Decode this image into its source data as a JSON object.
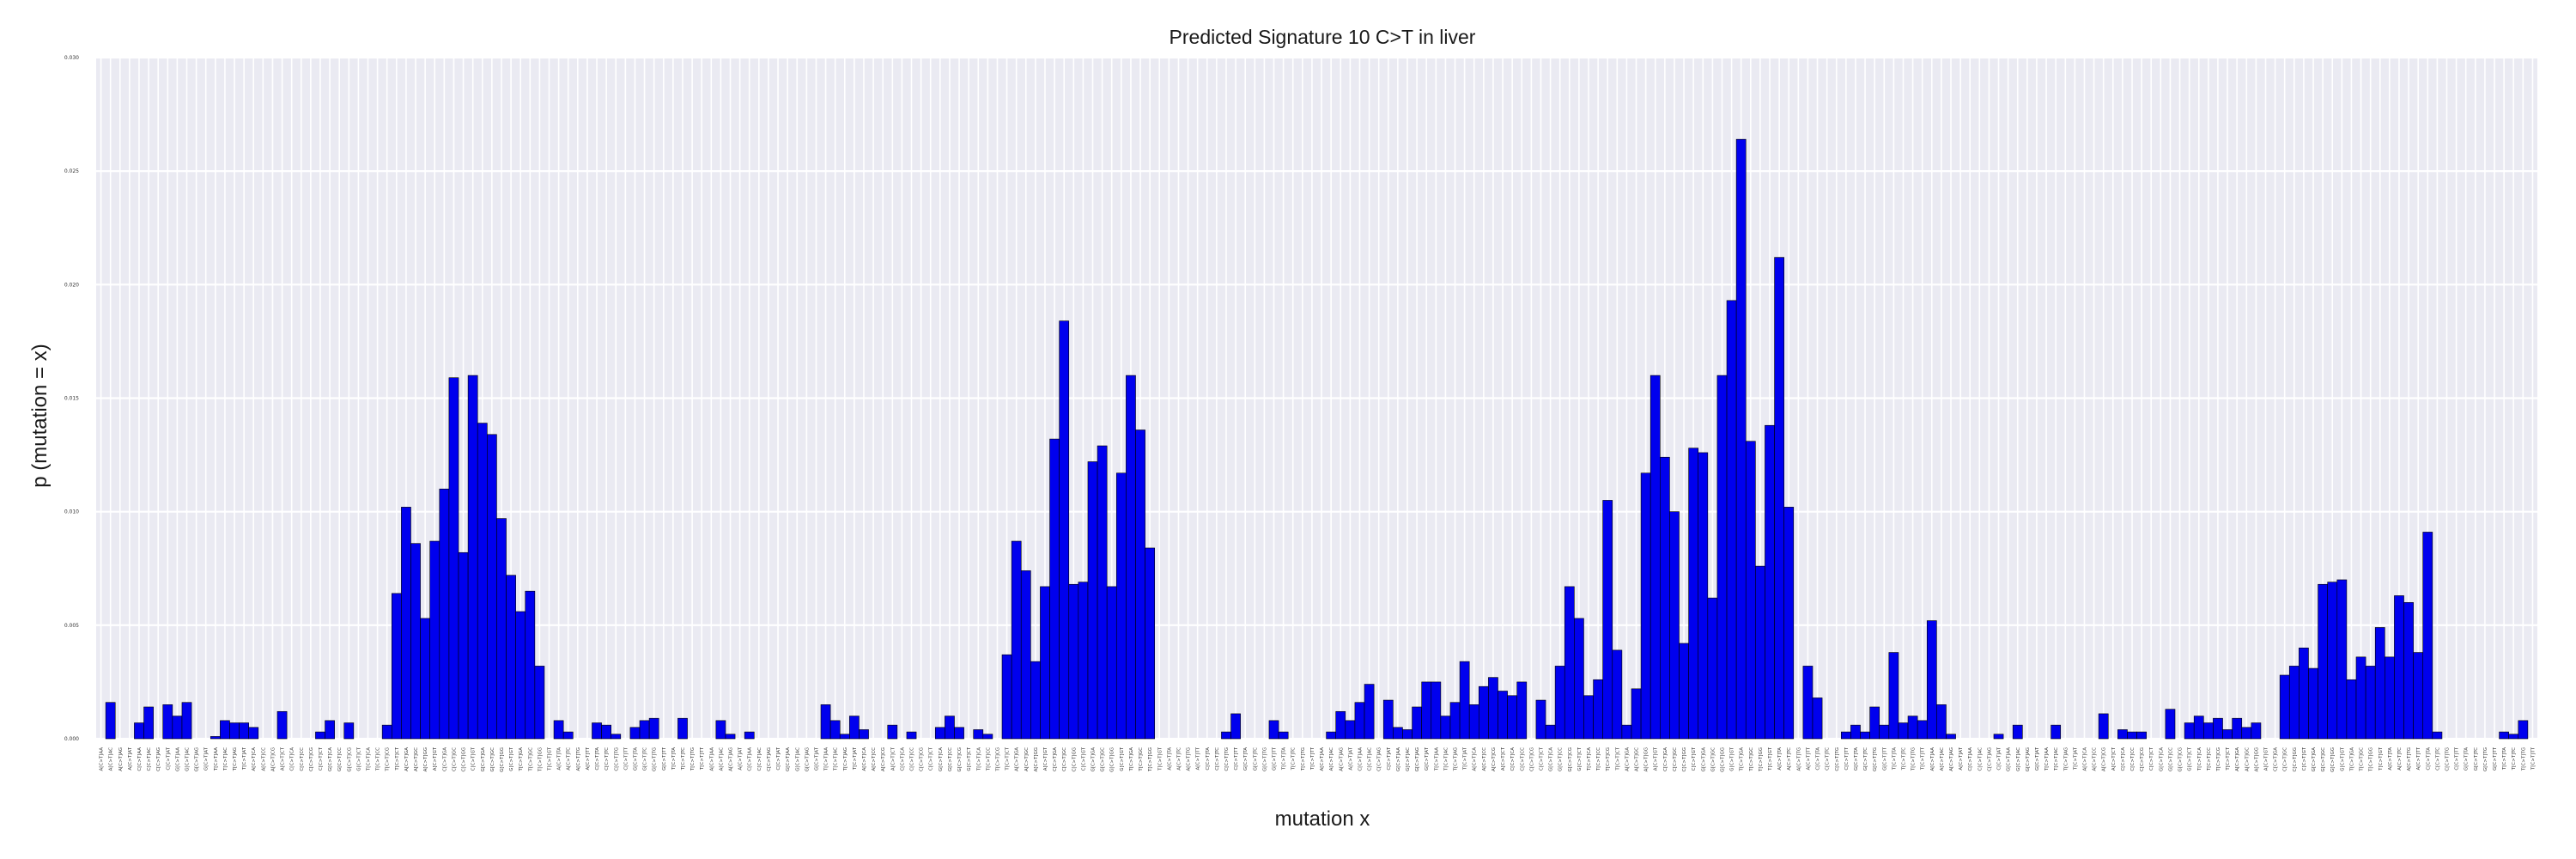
{
  "chart_data": {
    "type": "bar",
    "title": "Predicted Signature 10 C>T in liver",
    "xlabel": "mutation x",
    "ylabel": "p (mutation = x)",
    "ylim": [
      0,
      0.03
    ],
    "yticks": [
      "0.000",
      "0.005",
      "0.010",
      "0.015",
      "0.020",
      "0.025",
      "0.030"
    ],
    "grid": true,
    "colors": {
      "bar": "#0000ee",
      "bar_edge": "#000000",
      "plot_bg": "#eaeaf2",
      "grid": "#ffffff"
    },
    "categories": [
      "A[C>T]AA",
      "A[C>T]AC",
      "A[C>T]AG",
      "A[C>T]AT",
      "C[C>T]AA",
      "C[C>T]AC",
      "C[C>T]AG",
      "C[C>T]AT",
      "G[C>T]AA",
      "G[C>T]AC",
      "G[C>T]AG",
      "G[C>T]AT",
      "T[C>T]AA",
      "T[C>T]AC",
      "T[C>T]AG",
      "T[C>T]AT",
      "A[C>T]CA",
      "A[C>T]CC",
      "A[C>T]CG",
      "A[C>T]CT",
      "C[C>T]CA",
      "C[C>T]CC",
      "C[C>T]CG",
      "C[C>T]CT",
      "G[C>T]CA",
      "G[C>T]CC",
      "G[C>T]CG",
      "G[C>T]CT",
      "T[C>T]CA",
      "T[C>T]CC",
      "T[C>T]CG",
      "T[C>T]CT",
      "A[C>T]GA",
      "A[C>T]GC",
      "A[C>T]GG",
      "A[C>T]GT",
      "C[C>T]GA",
      "C[C>T]GC",
      "C[C>T]GG",
      "C[C>T]GT",
      "G[C>T]GA",
      "G[C>T]GC",
      "G[C>T]GG",
      "G[C>T]GT",
      "T[C>T]GA",
      "T[C>T]GC",
      "T[C>T]GG",
      "T[C>T]GT",
      "A[C>T]TA",
      "A[C>T]TC",
      "A[C>T]TG",
      "A[C>T]TT",
      "C[C>T]TA",
      "C[C>T]TC",
      "C[C>T]TG",
      "C[C>T]TT",
      "G[C>T]TA",
      "G[C>T]TC",
      "G[C>T]TG",
      "G[C>T]TT",
      "T[C>T]TA",
      "T[C>T]TC",
      "T[C>T]TG",
      "T[C>T]TT",
      "A[C>T]AA",
      "A[C>T]AC",
      "A[C>T]AG",
      "A[C>T]AT",
      "C[C>T]AA",
      "C[C>T]AC",
      "C[C>T]AG",
      "C[C>T]AT",
      "G[C>T]AA",
      "G[C>T]AC",
      "G[C>T]AG",
      "G[C>T]AT",
      "T[C>T]AA",
      "T[C>T]AC",
      "T[C>T]AG",
      "T[C>T]AT",
      "A[C>T]CA",
      "A[C>T]CC",
      "A[C>T]CG",
      "A[C>T]CT",
      "C[C>T]CA",
      "C[C>T]CC",
      "C[C>T]CG",
      "C[C>T]CT",
      "G[C>T]CA",
      "G[C>T]CC",
      "G[C>T]CG",
      "G[C>T]CT",
      "T[C>T]CA",
      "T[C>T]CC",
      "T[C>T]CG",
      "T[C>T]CT",
      "A[C>T]GA",
      "A[C>T]GC",
      "A[C>T]GG",
      "A[C>T]GT",
      "C[C>T]GA",
      "C[C>T]GC",
      "C[C>T]GG",
      "C[C>T]GT",
      "G[C>T]GA",
      "G[C>T]GC",
      "G[C>T]GG",
      "G[C>T]GT",
      "T[C>T]GA",
      "T[C>T]GC",
      "T[C>T]GG",
      "T[C>T]GT",
      "A[C>T]TA",
      "A[C>T]TC",
      "A[C>T]TG",
      "A[C>T]TT",
      "C[C>T]TA",
      "C[C>T]TC",
      "C[C>T]TG",
      "C[C>T]TT",
      "G[C>T]TA",
      "G[C>T]TC",
      "G[C>T]TG",
      "G[C>T]TT",
      "T[C>T]TA",
      "T[C>T]TC",
      "T[C>T]TG",
      "T[C>T]TT",
      "A[C>T]AA",
      "A[C>T]AC",
      "A[C>T]AG",
      "A[C>T]AT",
      "C[C>T]AA",
      "C[C>T]AC",
      "C[C>T]AG",
      "C[C>T]AT",
      "G[C>T]AA",
      "G[C>T]AC",
      "G[C>T]AG",
      "G[C>T]AT",
      "T[C>T]AA",
      "T[C>T]AC",
      "T[C>T]AG",
      "T[C>T]AT",
      "A[C>T]CA",
      "A[C>T]CC",
      "A[C>T]CG",
      "A[C>T]CT",
      "C[C>T]CA",
      "C[C>T]CC",
      "C[C>T]CG",
      "C[C>T]CT",
      "G[C>T]CA",
      "G[C>T]CC",
      "G[C>T]CG",
      "G[C>T]CT",
      "T[C>T]CA",
      "T[C>T]CC",
      "T[C>T]CG",
      "T[C>T]CT",
      "A[C>T]GA",
      "A[C>T]GC",
      "A[C>T]GG",
      "A[C>T]GT",
      "C[C>T]GA",
      "C[C>T]GC",
      "C[C>T]GG",
      "C[C>T]GT",
      "G[C>T]GA",
      "G[C>T]GC",
      "G[C>T]GG",
      "G[C>T]GT",
      "T[C>T]GA",
      "T[C>T]GC",
      "T[C>T]GG",
      "T[C>T]GT",
      "A[C>T]TA",
      "A[C>T]TC",
      "A[C>T]TG",
      "A[C>T]TT",
      "C[C>T]TA",
      "C[C>T]TC",
      "C[C>T]TG",
      "C[C>T]TT",
      "G[C>T]TA",
      "G[C>T]TC",
      "G[C>T]TG",
      "G[C>T]TT",
      "T[C>T]TA",
      "T[C>T]TC",
      "T[C>T]TG",
      "T[C>T]TT",
      "A[C>T]AA",
      "A[C>T]AC",
      "A[C>T]AG",
      "A[C>T]AT",
      "C[C>T]AA",
      "C[C>T]AC",
      "C[C>T]AG",
      "C[C>T]AT",
      "G[C>T]AA",
      "G[C>T]AC",
      "G[C>T]AG",
      "G[C>T]AT",
      "T[C>T]AA",
      "T[C>T]AC",
      "T[C>T]AG",
      "T[C>T]AT",
      "A[C>T]CA",
      "A[C>T]CC",
      "A[C>T]CG",
      "A[C>T]CT",
      "C[C>T]CA",
      "C[C>T]CC",
      "C[C>T]CG",
      "C[C>T]CT",
      "G[C>T]CA",
      "G[C>T]CC",
      "G[C>T]CG",
      "G[C>T]CT",
      "T[C>T]CA",
      "T[C>T]CC",
      "T[C>T]CG",
      "T[C>T]CT",
      "A[C>T]GA",
      "A[C>T]GC",
      "A[C>T]GG",
      "A[C>T]GT",
      "C[C>T]GA",
      "C[C>T]GC",
      "C[C>T]GG",
      "C[C>T]GT",
      "G[C>T]GA",
      "G[C>T]GC",
      "G[C>T]GG",
      "G[C>T]GT",
      "T[C>T]GA",
      "T[C>T]GC",
      "T[C>T]GG",
      "T[C>T]GT",
      "A[C>T]TA",
      "A[C>T]TC",
      "A[C>T]TG",
      "A[C>T]TT",
      "C[C>T]TA",
      "C[C>T]TC",
      "C[C>T]TG",
      "C[C>T]TT",
      "G[C>T]TA",
      "G[C>T]TC",
      "G[C>T]TG",
      "G[C>T]TT",
      "T[C>T]TA",
      "T[C>T]TC",
      "T[C>T]TG",
      "T[C>T]TT"
    ],
    "values": [
      0.0,
      0.0016,
      0.0,
      0.0,
      0.0007,
      0.0014,
      0.0,
      0.0015,
      0.001,
      0.0016,
      0.0,
      0.0,
      0.0001,
      0.0008,
      0.0007,
      0.0007,
      0.0005,
      0.0,
      0.0,
      0.0012,
      0.0,
      0.0,
      0.0,
      0.0003,
      0.0008,
      0.0,
      0.0007,
      0.0,
      0.0,
      0.0,
      0.0006,
      0.0064,
      0.0102,
      0.0086,
      0.0053,
      0.0087,
      0.011,
      0.0159,
      0.0082,
      0.016,
      0.0139,
      0.0134,
      0.0097,
      0.0072,
      0.0056,
      0.0065,
      0.0032,
      0.0,
      0.0008,
      0.0003,
      0.0,
      0.0,
      0.0007,
      0.0006,
      0.0002,
      0.0,
      0.0005,
      0.0008,
      0.0009,
      0.0,
      0.0,
      0.0009,
      0.0,
      0.0,
      0.0,
      0.0008,
      0.0002,
      0.0,
      0.0003,
      0.0,
      0.0,
      0.0,
      0.0,
      0.0,
      0.0,
      0.0,
      0.0015,
      0.0008,
      0.0002,
      0.001,
      0.0004,
      0.0,
      0.0,
      0.0006,
      0.0,
      0.0003,
      0.0,
      0.0,
      0.0005,
      0.001,
      0.0005,
      0.0,
      0.0004,
      0.0002,
      0.0,
      0.0037,
      0.0087,
      0.0074,
      0.0034,
      0.0067,
      0.0132,
      0.0184,
      0.0068,
      0.0069,
      0.0122,
      0.0129,
      0.0067,
      0.0117,
      0.016,
      0.0136,
      0.0084,
      0.0,
      0.0,
      0.0,
      0.0,
      0.0,
      0.0,
      0.0,
      0.0003,
      0.0011,
      0.0,
      0.0,
      0.0,
      0.0008,
      0.0003,
      0.0,
      0.0,
      0.0,
      0.0,
      0.0003,
      0.0012,
      0.0008,
      0.0016,
      0.0024,
      0.0,
      0.0017,
      0.0005,
      0.0004,
      0.0014,
      0.0025,
      0.0025,
      0.001,
      0.0016,
      0.0034,
      0.0015,
      0.0023,
      0.0027,
      0.0021,
      0.0019,
      0.0025,
      0.0,
      0.0017,
      0.0006,
      0.0032,
      0.0067,
      0.0053,
      0.0019,
      0.0026,
      0.0105,
      0.0039,
      0.0006,
      0.0022,
      0.0117,
      0.016,
      0.0124,
      0.01,
      0.0042,
      0.0128,
      0.0126,
      0.0062,
      0.016,
      0.0193,
      0.0264,
      0.0131,
      0.0076,
      0.0138,
      0.0212,
      0.0102,
      0.0,
      0.0032,
      0.0018,
      0.0,
      0.0,
      0.0003,
      0.0006,
      0.0003,
      0.0014,
      0.0006,
      0.0038,
      0.0007,
      0.001,
      0.0008,
      0.0052,
      0.0015,
      0.0002,
      0.0,
      0.0,
      0.0,
      0.0,
      0.0002,
      0.0,
      0.0006,
      0.0,
      0.0,
      0.0,
      0.0006,
      0.0,
      0.0,
      0.0,
      0.0,
      0.0011,
      0.0,
      0.0004,
      0.0003,
      0.0003,
      0.0,
      0.0,
      0.0013,
      0.0,
      0.0007,
      0.001,
      0.0007,
      0.0009,
      0.0004,
      0.0009,
      0.0005,
      0.0007,
      0.0,
      0.0,
      0.0028,
      0.0032,
      0.004,
      0.0031,
      0.0068,
      0.0069,
      0.007,
      0.0026,
      0.0036,
      0.0032,
      0.0049,
      0.0036,
      0.0063,
      0.006,
      0.0038,
      0.0091,
      0.0003,
      0.0,
      0.0,
      0.0,
      0.0,
      0.0,
      0.0,
      0.0003,
      0.0002,
      0.0008,
      0.0
    ]
  }
}
